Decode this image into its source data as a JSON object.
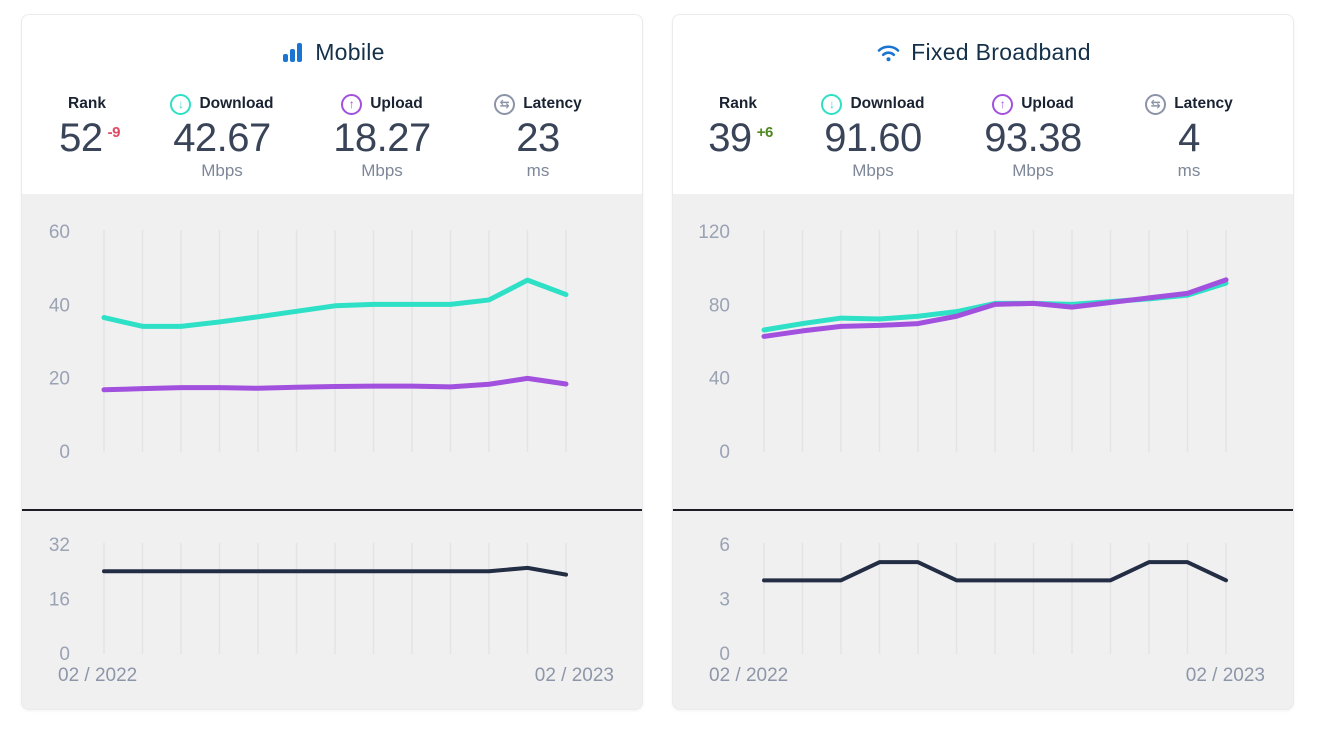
{
  "panels": [
    {
      "id": "mobile",
      "title": "Mobile",
      "title_icon": "mobile-signal-bars-icon",
      "stats": {
        "rank": {
          "label": "Rank",
          "value": "52",
          "change": "-9",
          "change_color": "#e24a63"
        },
        "download": {
          "label": "Download",
          "value": "42.67",
          "unit": "Mbps"
        },
        "upload": {
          "label": "Upload",
          "value": "18.27",
          "unit": "Mbps"
        },
        "latency": {
          "label": "Latency",
          "value": "23",
          "unit": "ms"
        }
      },
      "x_axis": {
        "start": "02 / 2022",
        "end": "02 / 2023"
      }
    },
    {
      "id": "fixed-broadband",
      "title": "Fixed Broadband",
      "title_icon": "wifi-icon",
      "stats": {
        "rank": {
          "label": "Rank",
          "value": "39",
          "change": "+6",
          "change_color": "#4c871f"
        },
        "download": {
          "label": "Download",
          "value": "91.60",
          "unit": "Mbps"
        },
        "upload": {
          "label": "Upload",
          "value": "93.38",
          "unit": "Mbps"
        },
        "latency": {
          "label": "Latency",
          "value": "4",
          "unit": "ms"
        }
      },
      "x_axis": {
        "start": "02 / 2022",
        "end": "02 / 2023"
      }
    }
  ],
  "colors": {
    "brand_blue": "#1a75d2",
    "download_teal": "#2ee0c6",
    "upload_purple": "#a151dd",
    "latency_navy": "#232d44",
    "rank_down_red": "#e24a63",
    "rank_up_green": "#4c871f",
    "chart_bg": "#f0f0f1",
    "gridline": "#e4e4e7"
  },
  "chart_data": [
    {
      "type": "line",
      "panel": "mobile",
      "subchart": "speeds",
      "x_points": 13,
      "x_labels": [
        "02 / 2022",
        "02 / 2023"
      ],
      "ylim": [
        0,
        60
      ],
      "yticks": [
        60,
        40,
        20,
        0
      ],
      "grid": "vertical-only",
      "legend": "none",
      "series": [
        {
          "name": "Download (Mbps)",
          "color": "#2ee0c6",
          "values": [
            36.4,
            34,
            34,
            35.2,
            36.6,
            38.1,
            39.6,
            40,
            40,
            40,
            41.2,
            46.6,
            42.67
          ]
        },
        {
          "name": "Upload (Mbps)",
          "color": "#a151dd",
          "values": [
            16.7,
            17,
            17.3,
            17.3,
            17.1,
            17.4,
            17.6,
            17.7,
            17.7,
            17.5,
            18.2,
            19.8,
            18.27
          ]
        }
      ]
    },
    {
      "type": "line",
      "panel": "mobile",
      "subchart": "latency",
      "x_points": 13,
      "x_labels": [
        "02 / 2022",
        "02 / 2023"
      ],
      "ylim": [
        0,
        32
      ],
      "yticks": [
        32,
        16,
        0
      ],
      "grid": "vertical-only",
      "legend": "none",
      "series": [
        {
          "name": "Latency (ms)",
          "color": "#232d44",
          "values": [
            24,
            24,
            24,
            24,
            24,
            24,
            24,
            24,
            24,
            24,
            24,
            25,
            23
          ]
        }
      ]
    },
    {
      "type": "line",
      "panel": "fixed-broadband",
      "subchart": "speeds",
      "x_points": 13,
      "x_labels": [
        "02 / 2022",
        "02 / 2023"
      ],
      "ylim": [
        0,
        120
      ],
      "yticks": [
        120,
        80,
        40,
        0
      ],
      "grid": "vertical-only",
      "legend": "none",
      "series": [
        {
          "name": "Download (Mbps)",
          "color": "#2ee0c6",
          "values": [
            66,
            69.5,
            72.5,
            72,
            73.5,
            76,
            80.5,
            80.5,
            80,
            81.5,
            83,
            85,
            91.6
          ]
        },
        {
          "name": "Upload (Mbps)",
          "color": "#a151dd",
          "values": [
            62.5,
            65.5,
            68,
            68.5,
            69.5,
            73.5,
            80,
            80.5,
            78.5,
            81,
            83.5,
            86,
            93.38
          ]
        }
      ]
    },
    {
      "type": "line",
      "panel": "fixed-broadband",
      "subchart": "latency",
      "x_points": 13,
      "x_labels": [
        "02 / 2022",
        "02 / 2023"
      ],
      "ylim": [
        0,
        6
      ],
      "yticks": [
        6,
        3,
        0
      ],
      "grid": "vertical-only",
      "legend": "none",
      "series": [
        {
          "name": "Latency (ms)",
          "color": "#232d44",
          "values": [
            4,
            4,
            4,
            5,
            5,
            4,
            4,
            4,
            4,
            4,
            5,
            5,
            4
          ]
        }
      ]
    }
  ]
}
